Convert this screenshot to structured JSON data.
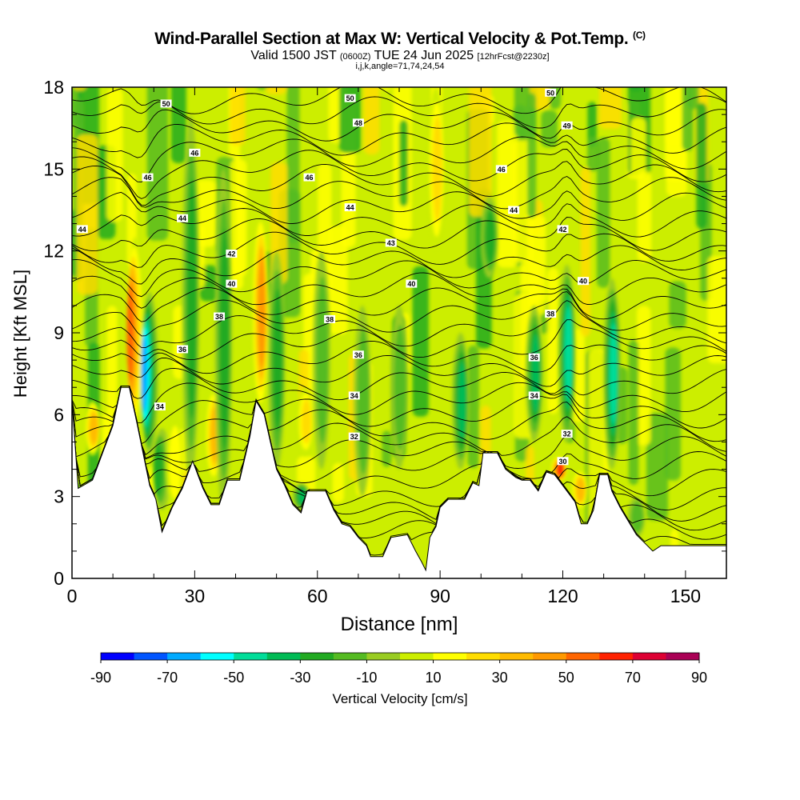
{
  "title": {
    "main": "Wind-Parallel Section at Max W: Vertical Velocity & Pot.Temp.",
    "copyright": "(C)",
    "valid_prefix": "Valid 1500 JST",
    "valid_utc": "(0600Z)",
    "valid_date": "TUE 24 Jun 2025",
    "forecast": "[12hrFcst@2230z]",
    "indices": "i,j,k,angle=71,74,24,54"
  },
  "chart_data": {
    "type": "heatmap",
    "xlabel": "Distance [nm]",
    "ylabel": "Height [Kft MSL]",
    "xlim": [
      0,
      160
    ],
    "ylim": [
      0,
      18
    ],
    "x_ticks": [
      0,
      30,
      60,
      90,
      120,
      150
    ],
    "y_ticks": [
      0,
      3,
      6,
      9,
      12,
      15,
      18
    ],
    "grid": false,
    "colorbar": {
      "label": "Vertical Velocity [cm/s]",
      "tick_labels": [
        "-90",
        "-70",
        "-50",
        "-30",
        "-10",
        "10",
        "30",
        "50",
        "70",
        "90"
      ],
      "levels": [
        -90,
        -80,
        -70,
        -60,
        -50,
        -40,
        -30,
        -20,
        -10,
        0,
        10,
        20,
        30,
        40,
        50,
        60,
        70,
        80,
        90
      ],
      "colors": [
        "#0000ff",
        "#0055ff",
        "#00aaff",
        "#00ffff",
        "#00dd99",
        "#00bb55",
        "#22aa22",
        "#55bb22",
        "#99cc22",
        "#ccee00",
        "#ffff00",
        "#ffdd00",
        "#ffbb00",
        "#ff9900",
        "#ff6600",
        "#ff2200",
        "#dd0033",
        "#aa0055",
        "#660088"
      ]
    },
    "vertical_velocity_features": [
      {
        "x": 5,
        "base": 4.5,
        "top": 6.5,
        "w": 40
      },
      {
        "x": 15.5,
        "base": 5.5,
        "top": 12.5,
        "w": 65
      },
      {
        "x": 19,
        "base": 4.5,
        "top": 10.5,
        "w": -75
      },
      {
        "x": 22,
        "base": 2.5,
        "top": 5.5,
        "w": -35
      },
      {
        "x": 25,
        "base": 2.5,
        "top": 6.0,
        "w": 25
      },
      {
        "x": 29,
        "base": 3.5,
        "top": 17.0,
        "w": -30
      },
      {
        "x": 34.5,
        "base": 3.5,
        "top": 7.0,
        "w": 45
      },
      {
        "x": 37,
        "base": 2.5,
        "top": 15.0,
        "w": -35
      },
      {
        "x": 46,
        "base": 6.0,
        "top": 13.5,
        "w": 50
      },
      {
        "x": 50,
        "base": 4.0,
        "top": 12.0,
        "w": -30
      },
      {
        "x": 56,
        "base": 2.5,
        "top": 3.5,
        "w": -45
      },
      {
        "x": 57,
        "base": 4.5,
        "top": 7.0,
        "w": 30
      },
      {
        "x": 61,
        "base": 4.0,
        "top": 12.0,
        "w": -20
      },
      {
        "x": 71,
        "base": 3.0,
        "top": 10.0,
        "w": -20
      },
      {
        "x": 80,
        "base": 4.0,
        "top": 10.0,
        "w": -20
      },
      {
        "x": 89,
        "base": 12.0,
        "top": 18.0,
        "w": 35
      },
      {
        "x": 95,
        "base": 4.0,
        "top": 9.0,
        "w": -45
      },
      {
        "x": 102,
        "base": 11.0,
        "top": 14.0,
        "w": -30
      },
      {
        "x": 113,
        "base": 5.0,
        "top": 10.0,
        "w": -40
      },
      {
        "x": 119,
        "base": 3.5,
        "top": 4.5,
        "w": 75
      },
      {
        "x": 121,
        "base": 5.0,
        "top": 11.5,
        "w": -55
      },
      {
        "x": 124,
        "base": 2.5,
        "top": 4.0,
        "w": 45
      },
      {
        "x": 132,
        "base": 4.0,
        "top": 11.0,
        "w": -50
      },
      {
        "x": 138,
        "base": 1.5,
        "top": 3.0,
        "w": -25
      }
    ],
    "terrain_height_kft": [
      [
        0,
        6.5
      ],
      [
        1.5,
        3.3
      ],
      [
        5,
        3.6
      ],
      [
        7.5,
        4.6
      ],
      [
        10,
        5.6
      ],
      [
        12,
        7.0
      ],
      [
        14,
        7.0
      ],
      [
        16,
        5.6
      ],
      [
        19,
        3.4
      ],
      [
        20.5,
        2.9
      ],
      [
        22,
        1.7
      ],
      [
        24.5,
        2.6
      ],
      [
        27,
        3.3
      ],
      [
        29.5,
        4.3
      ],
      [
        32,
        3.3
      ],
      [
        34,
        2.7
      ],
      [
        36,
        2.7
      ],
      [
        38,
        3.6
      ],
      [
        41,
        3.6
      ],
      [
        43.5,
        5.2
      ],
      [
        45,
        6.5
      ],
      [
        47,
        6.0
      ],
      [
        50,
        4.0
      ],
      [
        52,
        3.4
      ],
      [
        54,
        2.7
      ],
      [
        56,
        2.4
      ],
      [
        57.5,
        3.2
      ],
      [
        62,
        3.2
      ],
      [
        64,
        2.5
      ],
      [
        66,
        2.0
      ],
      [
        68,
        1.9
      ],
      [
        70,
        1.5
      ],
      [
        72,
        1.2
      ],
      [
        73,
        0.8
      ],
      [
        76,
        0.8
      ],
      [
        78,
        1.5
      ],
      [
        82,
        1.6
      ],
      [
        84,
        1.0
      ],
      [
        85.5,
        0.6
      ],
      [
        86.5,
        0.3
      ],
      [
        87.5,
        1.5
      ],
      [
        89,
        1.9
      ],
      [
        90,
        2.6
      ],
      [
        92,
        2.9
      ],
      [
        96,
        2.9
      ],
      [
        98,
        3.5
      ],
      [
        99.5,
        3.4
      ],
      [
        100.5,
        4.6
      ],
      [
        104,
        4.6
      ],
      [
        106,
        4.0
      ],
      [
        108.5,
        3.7
      ],
      [
        110,
        3.6
      ],
      [
        112,
        3.6
      ],
      [
        114,
        3.2
      ],
      [
        116,
        3.9
      ],
      [
        118,
        3.8
      ],
      [
        121,
        3.2
      ],
      [
        123,
        2.8
      ],
      [
        124.5,
        2.0
      ],
      [
        126,
        2.0
      ],
      [
        127.5,
        2.5
      ],
      [
        129,
        3.8
      ],
      [
        131,
        3.8
      ],
      [
        132,
        3.2
      ],
      [
        134,
        2.6
      ],
      [
        136,
        2.1
      ],
      [
        138,
        1.6
      ],
      [
        140,
        1.3
      ],
      [
        142,
        1.0
      ],
      [
        144,
        1.2
      ],
      [
        147,
        1.2
      ],
      [
        160,
        1.2
      ]
    ],
    "theta_contour_labels": [
      {
        "x": 23,
        "y": 17.4,
        "text": "50"
      },
      {
        "x": 68,
        "y": 17.6,
        "text": "50"
      },
      {
        "x": 117,
        "y": 17.8,
        "text": "50"
      },
      {
        "x": 30,
        "y": 15.6,
        "text": "46"
      },
      {
        "x": 70,
        "y": 16.7,
        "text": "48"
      },
      {
        "x": 121,
        "y": 16.6,
        "text": "49"
      },
      {
        "x": 18.5,
        "y": 14.7,
        "text": "46"
      },
      {
        "x": 58,
        "y": 14.7,
        "text": "46"
      },
      {
        "x": 105,
        "y": 15.0,
        "text": "46"
      },
      {
        "x": 2.5,
        "y": 12.8,
        "text": "44"
      },
      {
        "x": 27,
        "y": 13.2,
        "text": "44"
      },
      {
        "x": 68,
        "y": 13.6,
        "text": "44"
      },
      {
        "x": 108,
        "y": 13.5,
        "text": "44"
      },
      {
        "x": 78,
        "y": 12.3,
        "text": "43"
      },
      {
        "x": 120,
        "y": 12.8,
        "text": "42"
      },
      {
        "x": 39,
        "y": 11.9,
        "text": "42"
      },
      {
        "x": 39,
        "y": 10.8,
        "text": "40"
      },
      {
        "x": 83,
        "y": 10.8,
        "text": "40"
      },
      {
        "x": 125,
        "y": 10.9,
        "text": "40"
      },
      {
        "x": 36,
        "y": 9.6,
        "text": "38"
      },
      {
        "x": 63,
        "y": 9.5,
        "text": "38"
      },
      {
        "x": 117,
        "y": 9.7,
        "text": "38"
      },
      {
        "x": 27,
        "y": 8.4,
        "text": "36"
      },
      {
        "x": 70,
        "y": 8.2,
        "text": "36"
      },
      {
        "x": 113,
        "y": 8.1,
        "text": "36"
      },
      {
        "x": 21.5,
        "y": 6.3,
        "text": "34"
      },
      {
        "x": 69,
        "y": 6.7,
        "text": "34"
      },
      {
        "x": 113,
        "y": 6.7,
        "text": "34"
      },
      {
        "x": 69,
        "y": 5.2,
        "text": "32"
      },
      {
        "x": 121,
        "y": 5.3,
        "text": "32"
      },
      {
        "x": 120,
        "y": 4.3,
        "text": "30"
      }
    ]
  }
}
